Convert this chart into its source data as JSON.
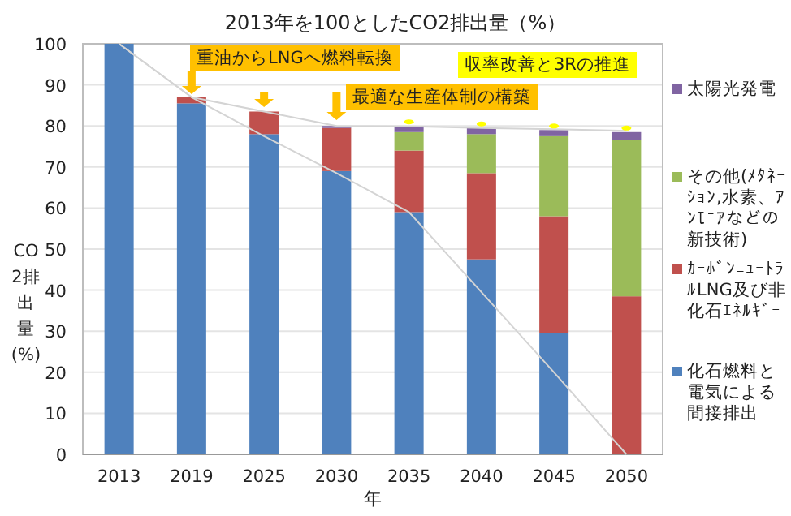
{
  "chart_data": {
    "type": "bar",
    "stacked": true,
    "title": "2013年を100としたCO2排出量（%）",
    "xlabel": "年",
    "ylabel": "CO2排出量(%)",
    "categories": [
      "2013",
      "2019",
      "2025",
      "2030",
      "2035",
      "2040",
      "2045",
      "2050"
    ],
    "series": [
      {
        "name": "化石燃料と電気による間接排出",
        "color": "#4f81bd",
        "values": [
          100,
          85.5,
          78,
          69,
          59,
          47.5,
          29.5,
          0
        ]
      },
      {
        "name": "ｶｰﾎﾞﾝﾆｭｰﾄﾗﾙLNG及び非化石ｴﾈﾙｷﾞｰ",
        "color": "#c0504d",
        "values": [
          0,
          1.5,
          5.5,
          10.5,
          15,
          21,
          28.5,
          38.5
        ]
      },
      {
        "name": "その他(ﾒﾀﾈｰｼｮﾝ,水素、ｱﾝﾓﾆｱなどの新技術)",
        "color": "#9bbb59",
        "values": [
          0,
          0,
          0,
          0,
          4.5,
          9.5,
          19.5,
          38
        ]
      },
      {
        "name": "太陽光発電",
        "color": "#8064a2",
        "values": [
          0,
          0,
          0,
          0.5,
          1.5,
          1.5,
          1.5,
          2
        ]
      },
      {
        "type": "line",
        "color": "#d4d4d4",
        "values": [
          100,
          87,
          83.5,
          80,
          79.9,
          79.5,
          79.2,
          78.8
        ]
      },
      {
        "type": "line",
        "color": "#d4d4d4",
        "values": [
          100,
          87,
          77.5,
          68.5,
          59,
          39.5,
          20,
          0
        ]
      }
    ],
    "ylim": [
      0,
      100
    ],
    "yticks": [
      0,
      10,
      20,
      30,
      40,
      50,
      60,
      70,
      80,
      90,
      100
    ],
    "grid": "y",
    "legend": "right",
    "annotations": [
      "重油からLNGへ燃料転換",
      "最適な生産体制の構築",
      "収率改善と3Rの推進"
    ]
  }
}
